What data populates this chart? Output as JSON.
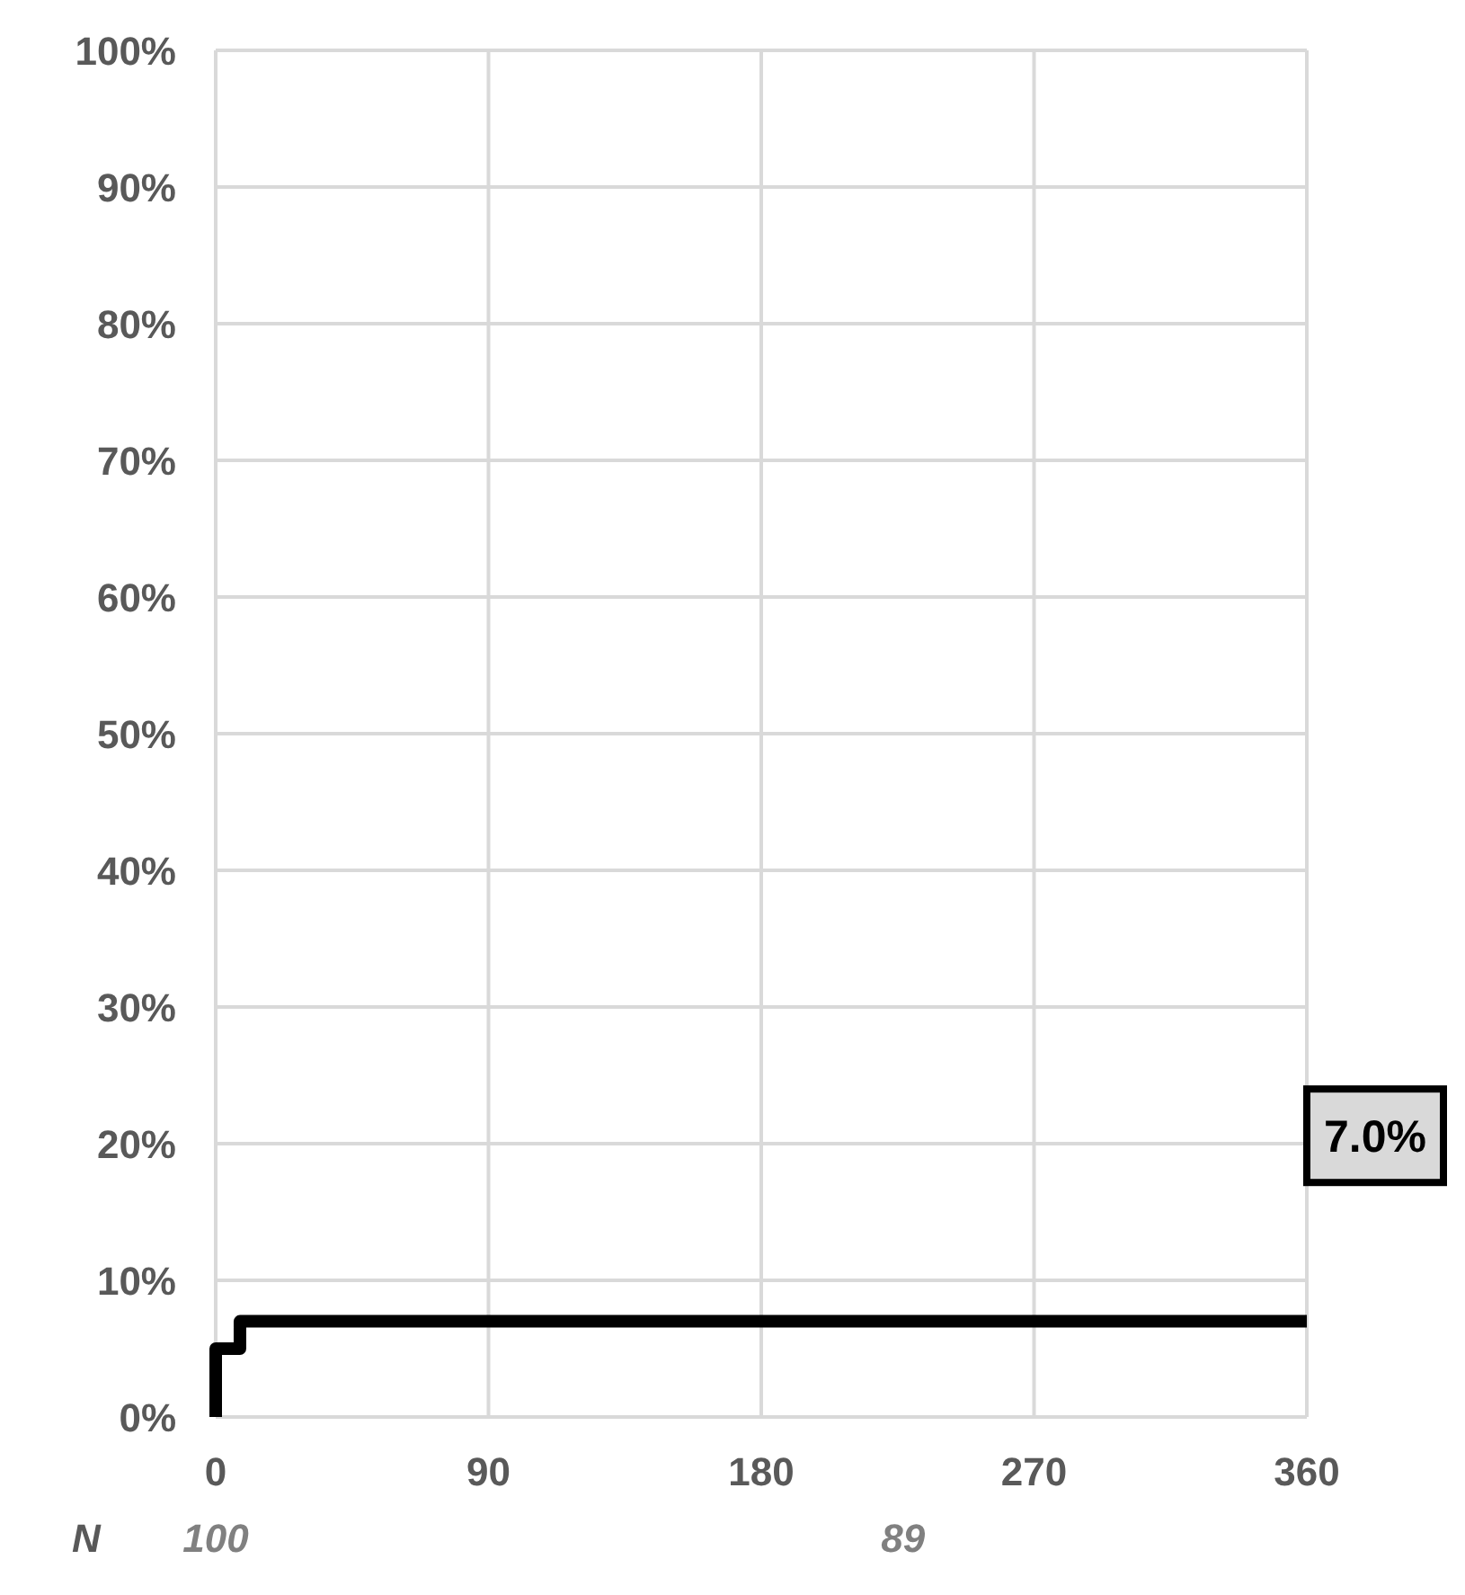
{
  "chart_data": {
    "type": "step",
    "x": [
      0,
      0,
      8,
      360
    ],
    "series": [
      {
        "color": "#000000",
        "values": [
          0,
          5,
          7,
          7
        ]
      }
    ],
    "xlim": [
      0,
      360
    ],
    "xticks": [
      0,
      90,
      180,
      270,
      360
    ],
    "ylim": [
      0,
      100
    ],
    "yticks": [
      {
        "value": 0,
        "label": "0%"
      },
      {
        "value": 10,
        "label": "10%"
      },
      {
        "value": 20,
        "label": "20%"
      },
      {
        "value": 30,
        "label": "30%"
      },
      {
        "value": 40,
        "label": "40%"
      },
      {
        "value": 50,
        "label": "50%"
      },
      {
        "value": 60,
        "label": "60%"
      },
      {
        "value": 70,
        "label": "70%"
      },
      {
        "value": 80,
        "label": "80%"
      },
      {
        "value": 90,
        "label": "90%"
      },
      {
        "value": 100,
        "label": "100%"
      }
    ],
    "grid": true,
    "annotations": [
      "7.0%",
      "N",
      "100",
      "89"
    ]
  }
}
